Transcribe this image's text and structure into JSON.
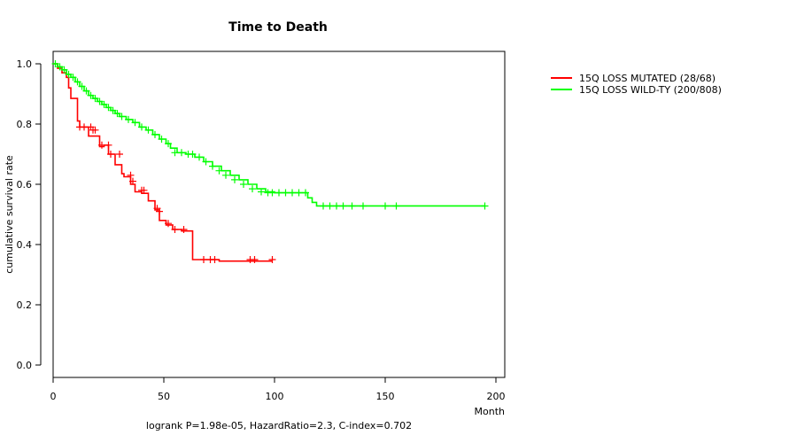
{
  "chart_data": {
    "type": "line",
    "subtype": "kaplan-meier",
    "title": "Time to Death",
    "xlabel": "Month",
    "ylabel": "cumulative survival rate",
    "xlim": [
      0,
      200
    ],
    "ylim": [
      0,
      1
    ],
    "xticks": [
      0,
      50,
      100,
      150,
      200
    ],
    "yticks": [
      0.0,
      0.2,
      0.4,
      0.6,
      0.8,
      1.0
    ],
    "ytick_labels": [
      "0.0",
      "0.2",
      "0.4",
      "0.6",
      "0.8",
      "1.0"
    ],
    "legend_position": "top-right",
    "annotation": "logrank P=1.98e-05, HazardRatio=2.3, C-index=0.702",
    "series": [
      {
        "name": "15Q LOSS MUTATED (28/68)",
        "color": "#ff0000",
        "step_x": [
          0,
          2,
          4,
          6,
          7,
          8,
          11,
          12,
          16,
          21,
          23,
          25,
          28,
          31,
          32,
          35,
          37,
          40,
          43,
          46,
          48,
          51,
          54,
          58,
          63,
          75,
          99
        ],
        "step_y": [
          1.0,
          0.985,
          0.97,
          0.955,
          0.92,
          0.885,
          0.81,
          0.79,
          0.76,
          0.725,
          0.73,
          0.7,
          0.665,
          0.635,
          0.625,
          0.6,
          0.575,
          0.57,
          0.545,
          0.515,
          0.48,
          0.465,
          0.45,
          0.445,
          0.35,
          0.345,
          0.345
        ],
        "censor_x": [
          12,
          14,
          17,
          18,
          19,
          22,
          25,
          26,
          30,
          35,
          36,
          40,
          41,
          47,
          48,
          52,
          55,
          59,
          68,
          71,
          73,
          89,
          91,
          99
        ],
        "censor_y": [
          0.79,
          0.79,
          0.79,
          0.78,
          0.78,
          0.73,
          0.73,
          0.7,
          0.7,
          0.63,
          0.61,
          0.58,
          0.58,
          0.52,
          0.51,
          0.47,
          0.45,
          0.45,
          0.35,
          0.35,
          0.35,
          0.35,
          0.35,
          0.35
        ]
      },
      {
        "name": "15Q LOSS WILD-TY (200/808)",
        "color": "#00ff00",
        "step_x": [
          0,
          2,
          4,
          6,
          8,
          10,
          12,
          14,
          16,
          18,
          20,
          22,
          24,
          26,
          28,
          30,
          33,
          36,
          39,
          42,
          45,
          48,
          51,
          53,
          56,
          60,
          64,
          68,
          72,
          76,
          80,
          84,
          88,
          92,
          96,
          100,
          108,
          115,
          117,
          119,
          122,
          195
        ],
        "step_y": [
          1.0,
          0.99,
          0.98,
          0.965,
          0.955,
          0.94,
          0.925,
          0.91,
          0.895,
          0.885,
          0.875,
          0.865,
          0.855,
          0.845,
          0.835,
          0.825,
          0.815,
          0.805,
          0.79,
          0.78,
          0.765,
          0.75,
          0.735,
          0.72,
          0.705,
          0.7,
          0.69,
          0.675,
          0.66,
          0.645,
          0.63,
          0.615,
          0.6,
          0.585,
          0.575,
          0.572,
          0.572,
          0.555,
          0.54,
          0.528,
          0.528,
          0.528
        ],
        "censor_x": [
          1,
          3,
          5,
          7,
          9,
          11,
          13,
          15,
          17,
          19,
          21,
          23,
          25,
          27,
          29,
          31,
          34,
          37,
          40,
          43,
          46,
          49,
          52,
          55,
          58,
          61,
          63,
          66,
          69,
          72,
          75,
          78,
          82,
          86,
          90,
          94,
          97,
          99,
          102,
          105,
          108,
          111,
          114,
          122,
          125,
          128,
          131,
          135,
          140,
          150,
          155,
          195
        ],
        "censor_y": [
          1.0,
          0.99,
          0.98,
          0.965,
          0.955,
          0.94,
          0.925,
          0.91,
          0.895,
          0.885,
          0.875,
          0.865,
          0.855,
          0.845,
          0.835,
          0.825,
          0.815,
          0.805,
          0.79,
          0.78,
          0.765,
          0.75,
          0.735,
          0.705,
          0.705,
          0.7,
          0.7,
          0.69,
          0.675,
          0.66,
          0.645,
          0.63,
          0.615,
          0.6,
          0.585,
          0.575,
          0.572,
          0.572,
          0.572,
          0.572,
          0.572,
          0.572,
          0.572,
          0.528,
          0.528,
          0.528,
          0.528,
          0.528,
          0.528,
          0.528,
          0.528,
          0.528
        ]
      }
    ]
  }
}
